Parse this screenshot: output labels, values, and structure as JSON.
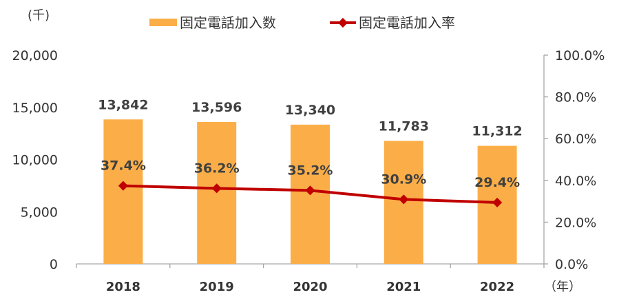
{
  "chart_data": {
    "type": "bar+line",
    "categories": [
      "2018",
      "2019",
      "2020",
      "2021",
      "2022"
    ],
    "series": [
      {
        "name": "固定電話加入数",
        "type": "bar",
        "axis": "left",
        "values": [
          13842,
          13596,
          13340,
          11783,
          11312
        ],
        "labels": [
          "13,842",
          "13,596",
          "13,340",
          "11,783",
          "11,312"
        ],
        "color": "#FBAE48"
      },
      {
        "name": "固定電話加入率",
        "type": "line",
        "axis": "right",
        "values": [
          37.4,
          36.2,
          35.2,
          30.9,
          29.4
        ],
        "labels": [
          "37.4%",
          "36.2%",
          "35.2%",
          "30.9%",
          "29.4%"
        ],
        "color": "#C00000"
      }
    ],
    "y_left": {
      "unit": "(千)",
      "range": [
        0,
        20000
      ],
      "ticks": [
        0,
        5000,
        10000,
        15000,
        20000
      ],
      "tick_labels": [
        "0",
        "5,000",
        "10,000",
        "15,000",
        "20,000"
      ]
    },
    "y_right": {
      "range": [
        0,
        100
      ],
      "ticks": [
        0,
        20,
        40,
        60,
        80,
        100
      ],
      "tick_labels": [
        "0.0%",
        "20.0%",
        "40.0%",
        "60.0%",
        "80.0%",
        "100.0%"
      ]
    },
    "x_unit": "（年）",
    "legend_position": "top",
    "grid": false
  }
}
